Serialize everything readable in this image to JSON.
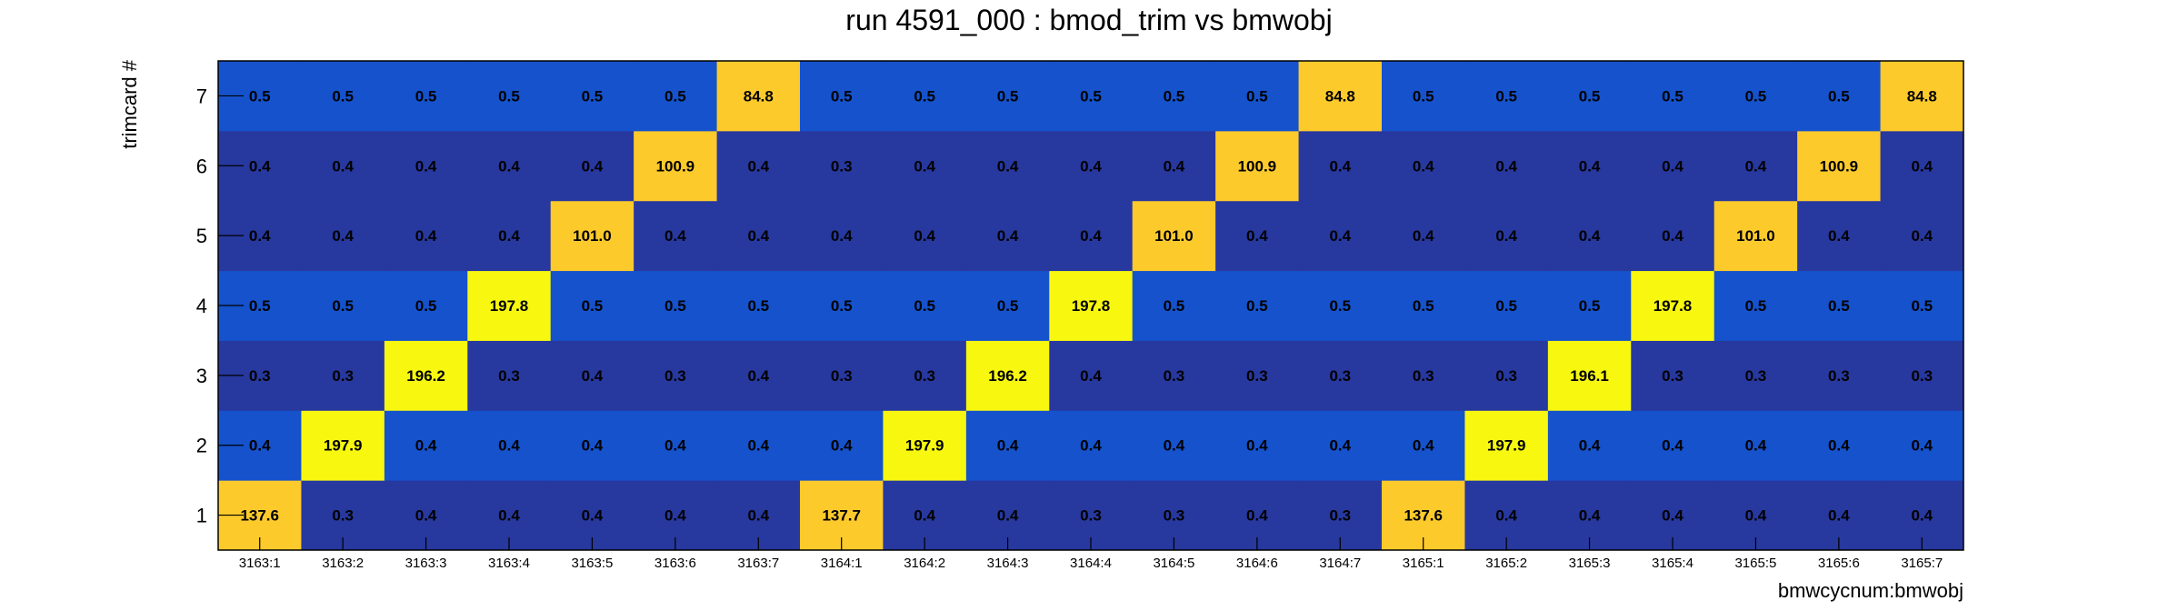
{
  "chart_data": {
    "type": "heatmap",
    "title": "run 4591_000 : bmod_trim vs bmwobj",
    "xlabel": "bmwcycnum:bmwobj",
    "ylabel": "trimcard #",
    "x_categories": [
      "3163:1",
      "3163:2",
      "3163:3",
      "3163:4",
      "3163:5",
      "3163:6",
      "3163:7",
      "3164:1",
      "3164:2",
      "3164:3",
      "3164:4",
      "3164:5",
      "3164:6",
      "3164:7",
      "3165:1",
      "3165:2",
      "3165:3",
      "3165:4",
      "3165:5",
      "3165:6",
      "3165:7"
    ],
    "y_categories": [
      "1",
      "2",
      "3",
      "4",
      "5",
      "6",
      "7"
    ],
    "values": [
      [
        "137.6",
        "0.3",
        "0.4",
        "0.4",
        "0.4",
        "0.4",
        "0.4",
        "137.7",
        "0.4",
        "0.4",
        "0.3",
        "0.3",
        "0.4",
        "0.3",
        "137.6",
        "0.4",
        "0.4",
        "0.4",
        "0.4",
        "0.4",
        "0.4"
      ],
      [
        "0.4",
        "197.9",
        "0.4",
        "0.4",
        "0.4",
        "0.4",
        "0.4",
        "0.4",
        "197.9",
        "0.4",
        "0.4",
        "0.4",
        "0.4",
        "0.4",
        "0.4",
        "197.9",
        "0.4",
        "0.4",
        "0.4",
        "0.4",
        "0.4"
      ],
      [
        "0.3",
        "0.3",
        "196.2",
        "0.3",
        "0.4",
        "0.3",
        "0.4",
        "0.3",
        "0.3",
        "196.2",
        "0.4",
        "0.3",
        "0.3",
        "0.3",
        "0.3",
        "0.3",
        "196.1",
        "0.3",
        "0.3",
        "0.3",
        "0.3"
      ],
      [
        "0.5",
        "0.5",
        "0.5",
        "197.8",
        "0.5",
        "0.5",
        "0.5",
        "0.5",
        "0.5",
        "0.5",
        "197.8",
        "0.5",
        "0.5",
        "0.5",
        "0.5",
        "0.5",
        "0.5",
        "197.8",
        "0.5",
        "0.5",
        "0.5"
      ],
      [
        "0.4",
        "0.4",
        "0.4",
        "0.4",
        "101.0",
        "0.4",
        "0.4",
        "0.4",
        "0.4",
        "0.4",
        "0.4",
        "101.0",
        "0.4",
        "0.4",
        "0.4",
        "0.4",
        "0.4",
        "0.4",
        "101.0",
        "0.4",
        "0.4"
      ],
      [
        "0.4",
        "0.4",
        "0.4",
        "0.4",
        "0.4",
        "100.9",
        "0.4",
        "0.3",
        "0.4",
        "0.4",
        "0.4",
        "0.4",
        "100.9",
        "0.4",
        "0.4",
        "0.4",
        "0.4",
        "0.4",
        "0.4",
        "100.9",
        "0.4"
      ],
      [
        "0.5",
        "0.5",
        "0.5",
        "0.5",
        "0.5",
        "0.5",
        "84.8",
        "0.5",
        "0.5",
        "0.5",
        "0.5",
        "0.5",
        "0.5",
        "84.8",
        "0.5",
        "0.5",
        "0.5",
        "0.5",
        "0.5",
        "0.5",
        "84.8"
      ]
    ],
    "colors": {
      "dark_blue": "#27389e",
      "blue": "#1552cc",
      "orange": "#fdca2c",
      "yellow": "#f7f710"
    }
  }
}
